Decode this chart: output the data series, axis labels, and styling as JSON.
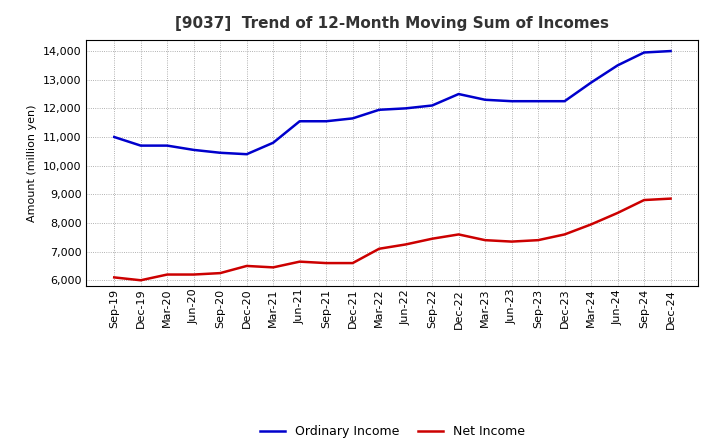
{
  "title": "[9037]  Trend of 12-Month Moving Sum of Incomes",
  "ylabel": "Amount (million yen)",
  "background_color": "#ffffff",
  "grid_color": "#999999",
  "ordinary_income_color": "#0000cc",
  "net_income_color": "#cc0000",
  "ordinary_income_label": "Ordinary Income",
  "net_income_label": "Net Income",
  "x_labels": [
    "Sep-19",
    "Dec-19",
    "Mar-20",
    "Jun-20",
    "Sep-20",
    "Dec-20",
    "Mar-21",
    "Jun-21",
    "Sep-21",
    "Dec-21",
    "Mar-22",
    "Jun-22",
    "Sep-22",
    "Dec-22",
    "Mar-23",
    "Jun-23",
    "Sep-23",
    "Dec-23",
    "Mar-24",
    "Jun-24",
    "Sep-24",
    "Dec-24"
  ],
  "ordinary_income": [
    11000,
    10700,
    10700,
    10550,
    10450,
    10400,
    10800,
    11550,
    11550,
    11650,
    11950,
    12000,
    12100,
    12500,
    12300,
    12250,
    12250,
    12250,
    12900,
    13500,
    13950,
    14000
  ],
  "net_income": [
    6100,
    6000,
    6200,
    6200,
    6250,
    6500,
    6450,
    6650,
    6600,
    6600,
    7100,
    7250,
    7450,
    7600,
    7400,
    7350,
    7400,
    7600,
    7950,
    8350,
    8800,
    8850
  ],
  "ylim": [
    5800,
    14400
  ],
  "yticks": [
    6000,
    7000,
    8000,
    9000,
    10000,
    11000,
    12000,
    13000,
    14000
  ],
  "title_fontsize": 11,
  "title_color": "#333333",
  "legend_fontsize": 9,
  "axis_fontsize": 8,
  "ylabel_fontsize": 8
}
